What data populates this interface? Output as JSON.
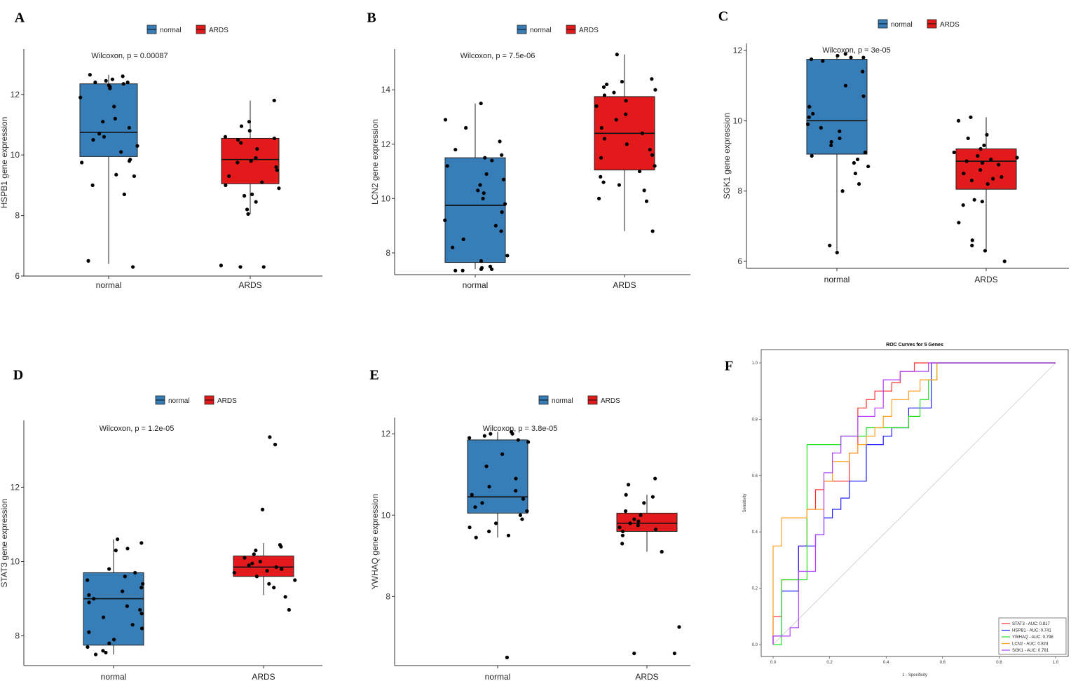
{
  "colors": {
    "normal": "#377DB8",
    "ARDS": "#E31A1C"
  },
  "legend_labels": [
    "normal",
    "ARDS"
  ],
  "chart_data": [
    {
      "panel": "A",
      "type": "box",
      "ylabel": "HSPB1 gene expression",
      "annotation": "Wilcoxon, p = 0.00087",
      "categories": [
        "normal",
        "ARDS"
      ],
      "ylim": [
        6,
        13.5
      ],
      "yticks": [
        6,
        8,
        10,
        12
      ],
      "boxes": [
        {
          "group": "normal",
          "min": 6.4,
          "q1": 9.95,
          "median": 10.75,
          "q3": 12.35,
          "max": 12.65
        },
        {
          "group": "ARDS",
          "min": 8.05,
          "q1": 9.05,
          "median": 9.85,
          "q3": 10.55,
          "max": 11.8
        }
      ],
      "points": [
        [
          12.65,
          12.6,
          12.5,
          12.45,
          12.4,
          12.4,
          12.35,
          12.3,
          12.25,
          12.2,
          11.9,
          11.6,
          11.2,
          11.1,
          10.9,
          10.7,
          10.6,
          10.5,
          10.3,
          10.1,
          9.85,
          9.8,
          9.75,
          9.35,
          9.3,
          9.0,
          8.7,
          6.5,
          6.3
        ],
        [
          11.8,
          11.1,
          10.95,
          10.8,
          10.6,
          10.55,
          10.5,
          10.4,
          10.2,
          9.9,
          9.8,
          9.75,
          9.6,
          9.5,
          9.3,
          9.1,
          9.0,
          8.9,
          8.7,
          8.65,
          8.45,
          8.2,
          8.05,
          6.35,
          6.3,
          6.3
        ]
      ]
    },
    {
      "panel": "B",
      "type": "box",
      "ylabel": "LCN2 gene expression",
      "annotation": "Wilcoxon, p = 7.5e-06",
      "categories": [
        "normal",
        "ARDS"
      ],
      "ylim": [
        7.2,
        15.5
      ],
      "yticks": [
        8,
        10,
        12,
        14
      ],
      "boxes": [
        {
          "group": "normal",
          "min": 7.4,
          "q1": 7.65,
          "median": 9.75,
          "q3": 11.5,
          "max": 13.5
        },
        {
          "group": "ARDS",
          "min": 8.8,
          "q1": 11.05,
          "median": 12.4,
          "q3": 13.75,
          "max": 15.3
        }
      ],
      "points": [
        [
          13.5,
          12.9,
          12.6,
          12.1,
          11.8,
          11.6,
          11.5,
          11.4,
          11.2,
          10.9,
          10.7,
          10.5,
          10.3,
          10.2,
          10.0,
          9.8,
          9.5,
          9.2,
          9.0,
          8.8,
          8.5,
          8.2,
          7.9,
          7.7,
          7.5,
          7.45,
          7.4,
          7.4,
          7.35,
          7.35
        ],
        [
          15.3,
          14.4,
          14.3,
          14.2,
          14.1,
          14.0,
          13.9,
          13.8,
          13.6,
          13.4,
          13.1,
          12.9,
          12.6,
          12.4,
          12.2,
          12.0,
          11.8,
          11.6,
          11.5,
          11.2,
          11.0,
          10.8,
          10.6,
          10.5,
          10.3,
          10.0,
          9.9,
          8.8
        ]
      ]
    },
    {
      "panel": "C",
      "type": "box",
      "ylabel": "SGK1 gene expression",
      "annotation": "Wilcoxon, p = 3e-05",
      "categories": [
        "normal",
        "ARDS"
      ],
      "ylim": [
        5.8,
        12.2
      ],
      "yticks": [
        6,
        8,
        10,
        12
      ],
      "boxes": [
        {
          "group": "normal",
          "min": 6.3,
          "q1": 9.05,
          "median": 10.0,
          "q3": 11.75,
          "max": 11.9
        },
        {
          "group": "ARDS",
          "min": 6.3,
          "q1": 8.05,
          "median": 8.85,
          "q3": 9.2,
          "max": 10.1
        }
      ],
      "points": [
        [
          11.9,
          11.85,
          11.8,
          11.8,
          11.75,
          11.7,
          11.4,
          11.0,
          10.7,
          10.4,
          10.2,
          10.1,
          9.9,
          9.8,
          9.7,
          9.5,
          9.4,
          9.3,
          9.1,
          9.0,
          8.9,
          8.8,
          8.7,
          8.5,
          8.2,
          8.0,
          6.45,
          6.25
        ],
        [
          10.1,
          10.0,
          9.6,
          9.5,
          9.3,
          9.2,
          9.1,
          9.0,
          8.95,
          8.9,
          8.85,
          8.8,
          8.75,
          8.6,
          8.5,
          8.4,
          8.35,
          8.3,
          8.2,
          7.75,
          7.7,
          7.6,
          7.1,
          6.6,
          6.45,
          6.3,
          6.0
        ]
      ]
    },
    {
      "panel": "D",
      "type": "box",
      "ylabel": "STAT3 gene expression",
      "annotation": "Wilcoxon, p = 1.2e-05",
      "categories": [
        "normal",
        "ARDS"
      ],
      "ylim": [
        7.2,
        13.8
      ],
      "yticks": [
        8,
        10,
        12
      ],
      "boxes": [
        {
          "group": "normal",
          "min": 7.5,
          "q1": 7.75,
          "median": 9.0,
          "q3": 9.7,
          "max": 10.6
        },
        {
          "group": "ARDS",
          "min": 9.1,
          "q1": 9.6,
          "median": 9.85,
          "q3": 10.15,
          "max": 10.5
        }
      ],
      "points": [
        [
          10.6,
          10.5,
          10.35,
          10.3,
          9.8,
          9.7,
          9.6,
          9.5,
          9.4,
          9.3,
          9.2,
          9.1,
          9.0,
          8.9,
          8.8,
          8.7,
          8.6,
          8.5,
          8.3,
          8.2,
          8.1,
          7.9,
          7.8,
          7.7,
          7.6,
          7.55,
          7.5
        ],
        [
          13.35,
          13.15,
          11.4,
          10.45,
          10.4,
          10.3,
          10.2,
          10.1,
          10.0,
          9.95,
          9.9,
          9.85,
          9.8,
          9.75,
          9.7,
          9.6,
          9.5,
          9.4,
          9.3,
          9.05,
          8.7
        ]
      ]
    },
    {
      "panel": "E",
      "type": "box",
      "ylabel": "YWHAQ gene expression",
      "annotation": "Wilcoxon, p = 3.8e-05",
      "categories": [
        "normal",
        "ARDS"
      ],
      "ylim": [
        6.3,
        12.4
      ],
      "yticks": [
        8,
        10,
        12
      ],
      "boxes": [
        {
          "group": "normal",
          "min": 9.45,
          "q1": 10.05,
          "median": 10.45,
          "q3": 11.85,
          "max": 12.05
        },
        {
          "group": "ARDS",
          "min": 9.1,
          "q1": 9.6,
          "median": 9.8,
          "q3": 10.05,
          "max": 10.5
        }
      ],
      "points": [
        [
          12.05,
          12.0,
          12.0,
          11.95,
          11.9,
          11.85,
          11.8,
          11.5,
          11.2,
          10.9,
          10.7,
          10.6,
          10.5,
          10.4,
          10.3,
          10.2,
          10.1,
          10.0,
          9.9,
          9.8,
          9.7,
          9.6,
          9.5,
          9.45,
          6.5
        ],
        [
          10.9,
          10.75,
          10.5,
          10.45,
          10.3,
          10.1,
          10.0,
          9.9,
          9.85,
          9.8,
          9.75,
          9.7,
          9.65,
          9.6,
          9.5,
          9.3,
          9.1,
          7.25,
          6.6,
          6.6
        ]
      ]
    },
    {
      "panel": "F",
      "type": "line",
      "title": "ROC Curves for 5 Genes",
      "xlabel": "1 - Specificity",
      "ylabel": "Sensitivity",
      "xlim": [
        0,
        1
      ],
      "ylim": [
        0,
        1
      ],
      "xticks": [
        0.0,
        0.2,
        0.4,
        0.6,
        0.8,
        1.0
      ],
      "yticks": [
        0.0,
        0.2,
        0.4,
        0.6,
        0.8,
        1.0
      ],
      "series": [
        {
          "name": "STAT3 - AUC: 0.817",
          "color": "#FF3030",
          "x": [
            0,
            0,
            0.03,
            0.03,
            0.09,
            0.09,
            0.12,
            0.12,
            0.15,
            0.15,
            0.18,
            0.18,
            0.27,
            0.27,
            0.3,
            0.3,
            0.33,
            0.33,
            0.36,
            0.36,
            0.42,
            0.42,
            0.45,
            0.45,
            0.5,
            0.5,
            0.55,
            0.55,
            1
          ],
          "y": [
            0,
            0.1,
            0.1,
            0.23,
            0.23,
            0.35,
            0.35,
            0.48,
            0.48,
            0.55,
            0.55,
            0.58,
            0.58,
            0.68,
            0.68,
            0.84,
            0.84,
            0.87,
            0.87,
            0.9,
            0.9,
            0.93,
            0.93,
            0.97,
            0.97,
            1,
            1,
            1,
            1
          ]
        },
        {
          "name": "HSPB1 - AUC: 0.741",
          "color": "#2020FF",
          "x": [
            0,
            0,
            0.03,
            0.03,
            0.09,
            0.09,
            0.15,
            0.15,
            0.18,
            0.18,
            0.21,
            0.21,
            0.24,
            0.24,
            0.27,
            0.27,
            0.33,
            0.33,
            0.39,
            0.39,
            0.42,
            0.42,
            0.48,
            0.48,
            0.52,
            0.52,
            0.56,
            0.56,
            1
          ],
          "y": [
            0,
            0.03,
            0.03,
            0.19,
            0.19,
            0.35,
            0.35,
            0.39,
            0.39,
            0.45,
            0.45,
            0.48,
            0.48,
            0.52,
            0.52,
            0.58,
            0.58,
            0.71,
            0.71,
            0.74,
            0.74,
            0.77,
            0.77,
            0.84,
            0.84,
            0.84,
            0.84,
            1,
            1
          ]
        },
        {
          "name": "YWHAQ - AUC: 0.798",
          "color": "#20E020",
          "x": [
            0,
            0,
            0.03,
            0.03,
            0.09,
            0.09,
            0.12,
            0.12,
            0.24,
            0.24,
            0.33,
            0.33,
            0.45,
            0.45,
            0.48,
            0.48,
            0.52,
            0.52,
            0.55,
            0.55,
            0.58,
            0.58,
            1
          ],
          "y": [
            0,
            0,
            0,
            0.23,
            0.23,
            0.23,
            0.23,
            0.71,
            0.71,
            0.74,
            0.74,
            0.77,
            0.77,
            0.77,
            0.77,
            0.81,
            0.81,
            0.87,
            0.87,
            0.94,
            0.94,
            1,
            1
          ]
        },
        {
          "name": "LCN2 - AUC: 0.824",
          "color": "#FFA020",
          "x": [
            0,
            0,
            0.03,
            0.03,
            0.12,
            0.12,
            0.18,
            0.18,
            0.21,
            0.21,
            0.27,
            0.27,
            0.3,
            0.3,
            0.33,
            0.33,
            0.36,
            0.36,
            0.39,
            0.39,
            0.42,
            0.42,
            0.48,
            0.48,
            0.52,
            0.52,
            0.58,
            0.58,
            1
          ],
          "y": [
            0,
            0.35,
            0.35,
            0.45,
            0.45,
            0.48,
            0.48,
            0.58,
            0.58,
            0.65,
            0.65,
            0.68,
            0.68,
            0.71,
            0.71,
            0.74,
            0.74,
            0.77,
            0.77,
            0.81,
            0.81,
            0.87,
            0.87,
            0.9,
            0.9,
            0.94,
            0.94,
            1,
            1
          ]
        },
        {
          "name": "SGK1 - AUC: 0.791",
          "color": "#B040FF",
          "x": [
            0,
            0,
            0.06,
            0.06,
            0.09,
            0.09,
            0.15,
            0.15,
            0.18,
            0.18,
            0.21,
            0.21,
            0.24,
            0.24,
            0.3,
            0.3,
            0.36,
            0.36,
            0.39,
            0.39,
            0.45,
            0.45,
            0.55,
            0.55,
            1
          ],
          "y": [
            0,
            0.03,
            0.03,
            0.06,
            0.06,
            0.26,
            0.26,
            0.39,
            0.39,
            0.61,
            0.61,
            0.68,
            0.68,
            0.74,
            0.74,
            0.81,
            0.81,
            0.84,
            0.84,
            0.94,
            0.94,
            0.97,
            0.97,
            1,
            1
          ]
        }
      ]
    }
  ]
}
